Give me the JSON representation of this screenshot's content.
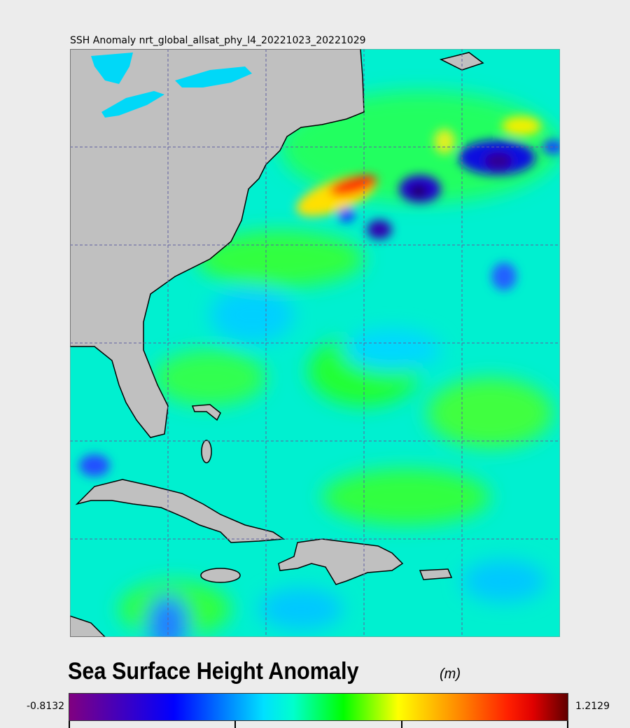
{
  "title": "SSH Anomaly nrt_global_allsat_phy_l4_20221023_20221029",
  "colorbar": {
    "title": "Sea Surface Height Anomaly",
    "unit": "(m)",
    "min": "-0.8132",
    "max": "1.2129",
    "colors": [
      "#800080",
      "#0000ff",
      "#00e0ff",
      "#00ff00",
      "#ffff00",
      "#ff8000",
      "#e00000",
      "#600000"
    ]
  },
  "map": {
    "land_color": "#c0c0c0",
    "grid": "dashed",
    "region": "Western North Atlantic / US East Coast / Caribbean"
  }
}
